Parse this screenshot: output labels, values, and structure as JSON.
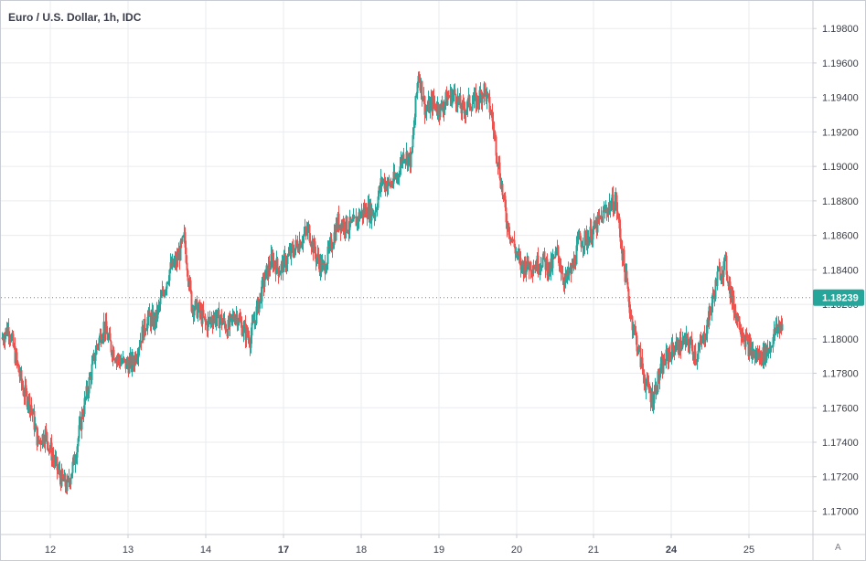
{
  "chart_data": {
    "type": "candlestick",
    "title": "Euro / U.S. Dollar, 1h, IDC",
    "y_ticks": [
      "1.19800",
      "1.19600",
      "1.19400",
      "1.19200",
      "1.19000",
      "1.18800",
      "1.18600",
      "1.18400",
      "1.18200",
      "1.18000",
      "1.17800",
      "1.17600",
      "1.17400",
      "1.17200",
      "1.17000"
    ],
    "ylim": [
      1.1687,
      1.1996
    ],
    "x_ticks": [
      {
        "label": "12",
        "bold": false
      },
      {
        "label": "13",
        "bold": false
      },
      {
        "label": "14",
        "bold": false
      },
      {
        "label": "17",
        "bold": true
      },
      {
        "label": "18",
        "bold": false
      },
      {
        "label": "19",
        "bold": false
      },
      {
        "label": "20",
        "bold": false
      },
      {
        "label": "21",
        "bold": false
      },
      {
        "label": "24",
        "bold": true
      },
      {
        "label": "25",
        "bold": false
      }
    ],
    "last_price": "1.18239",
    "last_price_value": 1.18239,
    "colors": {
      "up": "#26a69a",
      "down": "#ef5350",
      "grid": "#e9ebef",
      "axis_text": "#3a3e4a",
      "price_tag": "#26a69a"
    },
    "grid": true,
    "price_path": [
      1.18,
      1.1807,
      1.1788,
      1.177,
      1.1762,
      1.174,
      1.1745,
      1.1732,
      1.172,
      1.1714,
      1.173,
      1.1755,
      1.1775,
      1.1795,
      1.1808,
      1.1795,
      1.1788,
      1.1785,
      1.1786,
      1.18,
      1.1812,
      1.181,
      1.1825,
      1.184,
      1.1845,
      1.1858,
      1.182,
      1.1816,
      1.1808,
      1.1813,
      1.1811,
      1.1806,
      1.1815,
      1.1806,
      1.18,
      1.1818,
      1.1835,
      1.1846,
      1.184,
      1.1846,
      1.1852,
      1.1858,
      1.1863,
      1.1848,
      1.184,
      1.1853,
      1.1868,
      1.1866,
      1.1865,
      1.1872,
      1.1875,
      1.1873,
      1.1892,
      1.1889,
      1.1893,
      1.1908,
      1.1903,
      1.1955,
      1.1932,
      1.1937,
      1.1933,
      1.194,
      1.1942,
      1.1932,
      1.1937,
      1.1938,
      1.1945,
      1.193,
      1.19,
      1.187,
      1.1855,
      1.1842,
      1.1843,
      1.1843,
      1.1846,
      1.184,
      1.185,
      1.1833,
      1.184,
      1.1857,
      1.1858,
      1.1863,
      1.187,
      1.1877,
      1.188,
      1.1846,
      1.1815,
      1.1795,
      1.1775,
      1.1765,
      1.178,
      1.179,
      1.1795,
      1.1797,
      1.1798,
      1.179,
      1.18,
      1.1818,
      1.1838,
      1.1843,
      1.182,
      1.1808,
      1.1796,
      1.179,
      1.179,
      1.1795,
      1.1806,
      1.181,
      1.1818,
      1.1823
    ]
  },
  "controls": {
    "auto_scale_label": "A"
  }
}
